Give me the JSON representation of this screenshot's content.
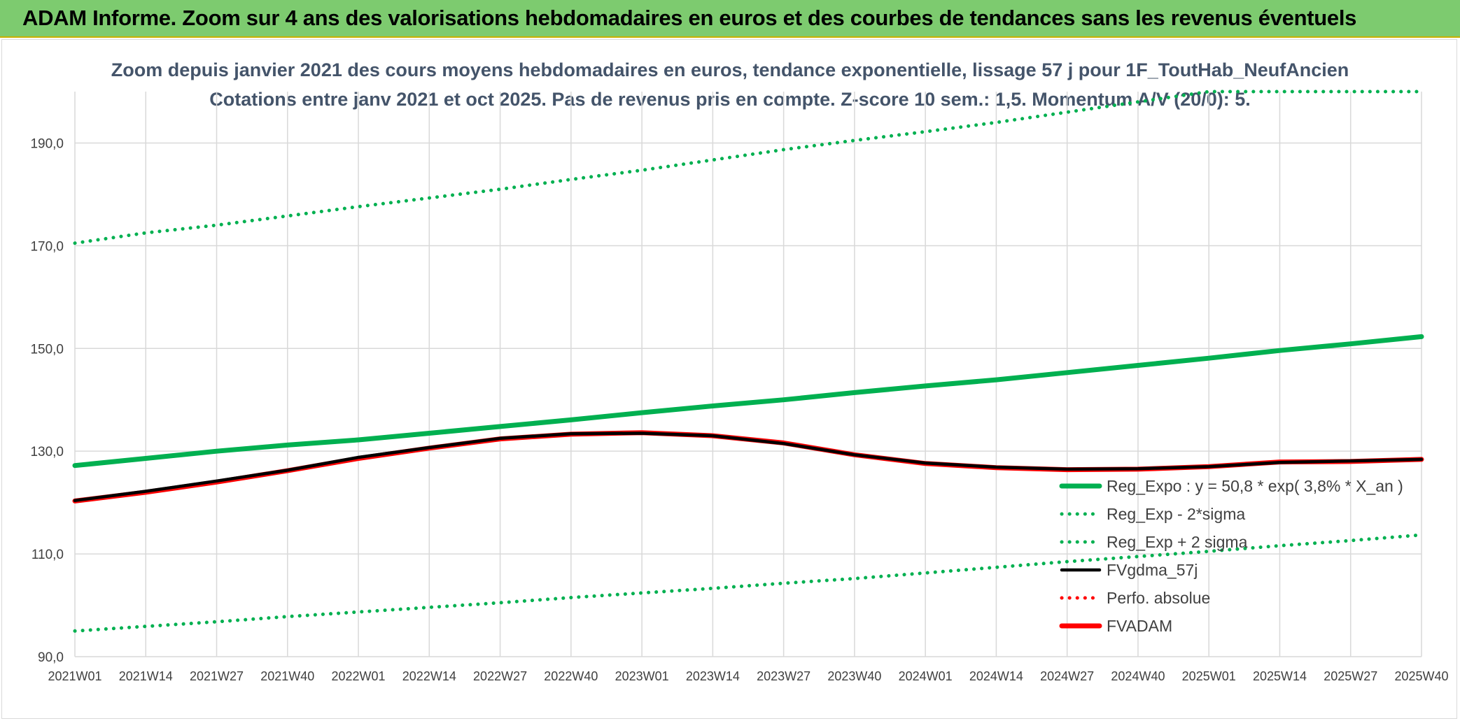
{
  "banner": {
    "title": "ADAM Informe. Zoom sur 4 ans des valorisations hebdomadaires en euros et des courbes de tendances sans les revenus éventuels"
  },
  "colors": {
    "banner_bg": "#7dcb6f",
    "regression": "#00b050",
    "fvgdma": "#000000",
    "perfo": "#ff0000",
    "fvadam": "#ff0000",
    "grid": "#d9d9d9"
  },
  "chart_data": {
    "type": "line",
    "title_line1": "Zoom depuis janvier 2021 des cours moyens hebdomadaires en euros, tendance exponentielle, lissage 57 j pour 1F_ToutHab_NeufAncien",
    "title_line2": "Cotations entre janv 2021 et oct 2025. Pas de revenus pris en compte. Z-score 10 sem.: 1,5. Momentum A/V (20/0): 5.",
    "x_tick_labels": [
      "2021W01",
      "2021W14",
      "2021W27",
      "2021W40",
      "2022W01",
      "2022W14",
      "2022W27",
      "2022W40",
      "2023W01",
      "2023W14",
      "2023W27",
      "2023W40",
      "2024W01",
      "2024W14",
      "2024W27",
      "2024W40",
      "2025W01",
      "2025W14",
      "2025W27",
      "2025W40"
    ],
    "y_tick_labels": [
      "90,0",
      "110,0",
      "130,0",
      "150,0",
      "170,0",
      "190,0"
    ],
    "y_ticks": [
      90,
      110,
      130,
      150,
      170,
      190
    ],
    "ylim": [
      90,
      200
    ],
    "grid": true,
    "legend_position": "bottom-right",
    "series": [
      {
        "name": "Reg_Expo : y = 50,8 * exp( 3,8% *  X_an )",
        "style": "solid-thick",
        "color": "#00b050",
        "values": [
          127.2,
          128.6,
          130.0,
          131.2,
          132.2,
          133.5,
          134.8,
          136.1,
          137.5,
          138.8,
          140.0,
          141.4,
          142.7,
          143.9,
          145.3,
          146.7,
          148.1,
          149.6,
          150.9,
          152.3
        ]
      },
      {
        "name": "Reg_Exp - 2*sigma",
        "style": "dotted",
        "color": "#00b050",
        "values": [
          95.0,
          95.9,
          96.8,
          97.8,
          98.7,
          99.6,
          100.5,
          101.5,
          102.4,
          103.3,
          104.3,
          105.2,
          106.3,
          107.4,
          108.5,
          109.5,
          110.5,
          111.6,
          112.6,
          113.7
        ]
      },
      {
        "name": "Reg_Exp + 2 sigma",
        "style": "dotted",
        "color": "#00b050",
        "values": [
          170.5,
          172.5,
          174.0,
          175.8,
          177.6,
          179.3,
          181.0,
          182.9,
          184.7,
          186.7,
          188.7,
          190.5,
          192.2,
          194.0,
          196.0,
          198.0,
          200.0,
          200.0,
          200.0,
          200.0
        ]
      },
      {
        "name": "FVgdma_57j",
        "style": "solid",
        "color": "#000000",
        "values": [
          120.4,
          122.2,
          124.2,
          126.3,
          128.8,
          130.7,
          132.5,
          133.4,
          133.5,
          133.0,
          131.5,
          129.3,
          127.7,
          126.9,
          126.5,
          126.6,
          127.0,
          127.8,
          128.1,
          128.4
        ]
      },
      {
        "name": "Perfo. absolue",
        "style": "dotted",
        "color": "#ff0000",
        "values": []
      },
      {
        "name": "FVADAM",
        "style": "solid-thick",
        "color": "#ff0000",
        "values": [
          120.3,
          122.0,
          124.0,
          126.2,
          128.6,
          130.6,
          132.4,
          133.3,
          133.6,
          133.0,
          131.6,
          129.3,
          127.6,
          126.8,
          126.4,
          126.5,
          127.0,
          127.9,
          128.0,
          128.4
        ]
      }
    ]
  }
}
